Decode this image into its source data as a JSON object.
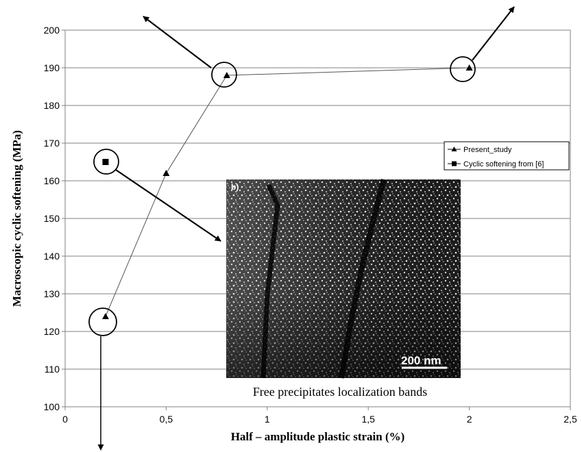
{
  "chart_data": {
    "type": "scatter",
    "xlabel": "Half – amplitude plastic strain  (%)",
    "ylabel": "Macroscopic cyclic softening (MPa)",
    "xlim": [
      0,
      2.5
    ],
    "ylim": [
      100,
      200
    ],
    "x_ticks": [
      0,
      0.5,
      1,
      1.5,
      2,
      2.5
    ],
    "x_tick_labels": [
      "0",
      "0,5",
      "1",
      "1,5",
      "2",
      "2,5"
    ],
    "y_ticks": [
      100,
      110,
      120,
      130,
      140,
      150,
      160,
      170,
      180,
      190,
      200
    ],
    "y_tick_labels": [
      "100",
      "110",
      "120",
      "130",
      "140",
      "150",
      "160",
      "170",
      "180",
      "190",
      "200"
    ],
    "grid": "horizontal",
    "legend_position": "right",
    "series": [
      {
        "name": "Present_study",
        "marker": "triangle",
        "line": true,
        "color": "#000000",
        "x": [
          0.2,
          0.5,
          0.8,
          2.0
        ],
        "y": [
          124,
          162,
          188,
          190
        ]
      },
      {
        "name": "Cyclic softening from [6]",
        "marker": "square",
        "line": false,
        "color": "#000000",
        "x": [
          0.2
        ],
        "y": [
          165
        ]
      }
    ],
    "annotations": {
      "inset_label": "b)",
      "inset_scale_bar": "200 nm",
      "inset_caption": "Free  precipitates localization bands"
    }
  }
}
